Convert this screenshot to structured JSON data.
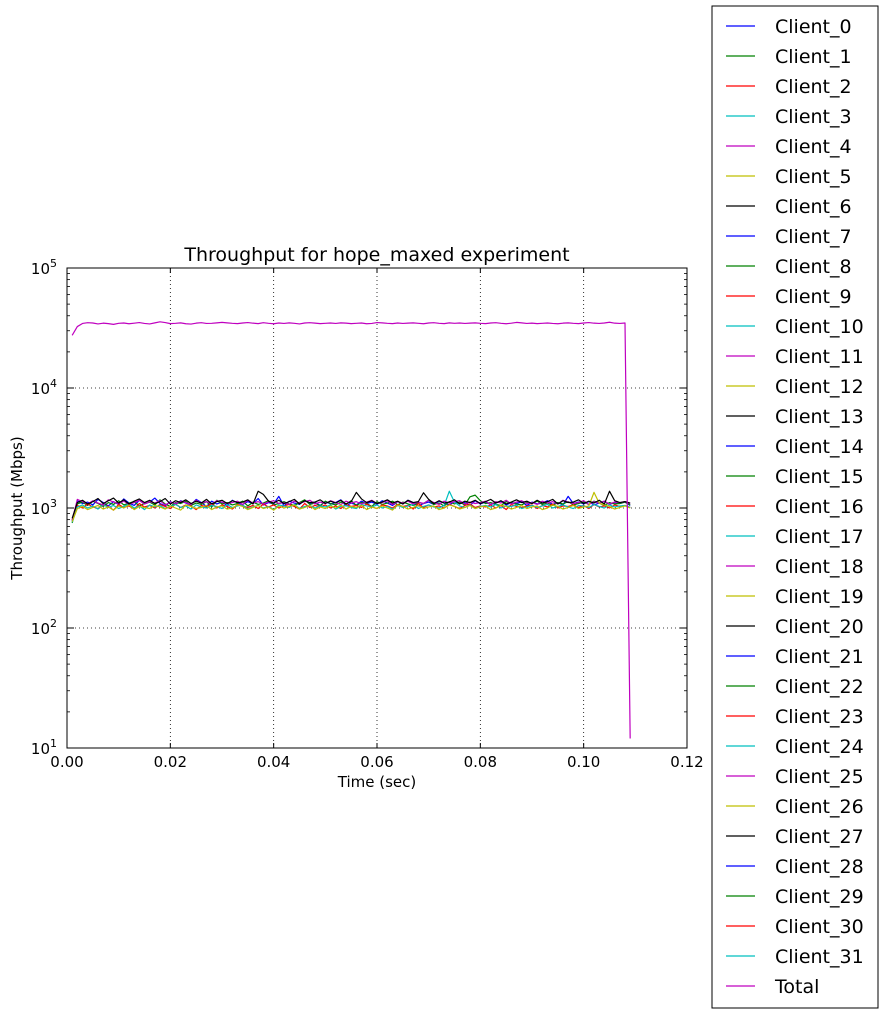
{
  "chart_data": {
    "type": "line",
    "title": "Throughput for hope_maxed experiment",
    "xlabel": "Time (sec)",
    "ylabel": "Throughput (Mbps)",
    "xlim": [
      0.0,
      0.12
    ],
    "ylim": [
      10,
      100000
    ],
    "yscale": "log",
    "grid": true,
    "legend_placement": "outside-right",
    "x_ticks": [
      "0.00",
      "0.02",
      "0.04",
      "0.06",
      "0.08",
      "0.10",
      "0.12"
    ],
    "y_ticks": [
      {
        "base": "10",
        "exp": "1"
      },
      {
        "base": "10",
        "exp": "2"
      },
      {
        "base": "10",
        "exp": "3"
      },
      {
        "base": "10",
        "exp": "4"
      },
      {
        "base": "10",
        "exp": "5"
      }
    ],
    "colors": [
      "#0000ff",
      "#008000",
      "#ff0000",
      "#00bfbf",
      "#bf00bf",
      "#bfbf00",
      "#000000"
    ],
    "x": [
      0.001,
      0.002,
      0.003,
      0.004,
      0.005,
      0.006,
      0.007,
      0.008,
      0.009,
      0.01,
      0.011,
      0.012,
      0.013,
      0.014,
      0.015,
      0.016,
      0.017,
      0.018,
      0.019,
      0.02,
      0.021,
      0.022,
      0.023,
      0.024,
      0.025,
      0.026,
      0.027,
      0.028,
      0.029,
      0.03,
      0.031,
      0.032,
      0.033,
      0.034,
      0.035,
      0.036,
      0.037,
      0.038,
      0.039,
      0.04,
      0.041,
      0.042,
      0.043,
      0.044,
      0.045,
      0.046,
      0.047,
      0.048,
      0.049,
      0.05,
      0.051,
      0.052,
      0.053,
      0.054,
      0.055,
      0.056,
      0.057,
      0.058,
      0.059,
      0.06,
      0.061,
      0.062,
      0.063,
      0.064,
      0.065,
      0.066,
      0.067,
      0.068,
      0.069,
      0.07,
      0.071,
      0.072,
      0.073,
      0.074,
      0.075,
      0.076,
      0.077,
      0.078,
      0.079,
      0.08,
      0.081,
      0.082,
      0.083,
      0.084,
      0.085,
      0.086,
      0.087,
      0.088,
      0.089,
      0.09,
      0.091,
      0.092,
      0.093,
      0.094,
      0.095,
      0.096,
      0.097,
      0.098,
      0.099,
      0.1,
      0.101,
      0.102,
      0.103,
      0.104,
      0.105,
      0.106,
      0.107,
      0.108,
      0.109
    ],
    "series": [
      {
        "name": "Client_0",
        "values": [
          780,
          1150,
          1090,
          1120,
          1060,
          1180,
          1110,
          1040,
          1130,
          1070,
          1190,
          1100,
          1050,
          1160,
          1080,
          1120,
          1210,
          1090,
          1040,
          1130,
          1070,
          1150,
          1100,
          1060,
          1180,
          1110,
          1030,
          1140,
          1080,
          1120,
          1050,
          1160,
          1100,
          1070,
          1130,
          1090,
          1200,
          1060,
          1110,
          1080,
          1250,
          1040,
          1140,
          1100,
          1070,
          1160,
          1090,
          1120,
          1050,
          1130,
          1080,
          1110,
          1170,
          1040,
          1100,
          1060,
          1140,
          1090,
          1120,
          1070,
          1150,
          1100,
          1050,
          1130,
          1080,
          1160,
          1110,
          1040,
          1090,
          1120,
          1070,
          1140,
          1100,
          1060,
          1130,
          1090,
          1110,
          1050,
          1150,
          1080,
          1120,
          1070,
          1100,
          1140,
          1060,
          1110,
          1090,
          1130,
          1050,
          1120,
          1080,
          1100,
          1150,
          1070,
          1110,
          1060,
          1250,
          1090,
          1120,
          1080,
          1130,
          1060,
          1100,
          1140,
          1070,
          1110,
          1090,
          1120,
          1050
        ]
      },
      {
        "name": "Client_1",
        "values": [
          750,
          1080,
          1120,
          1050,
          1140,
          1090,
          1030,
          1110,
          1070,
          1150,
          1060,
          1100,
          1130,
          1040,
          1090,
          1120,
          1060,
          1170,
          1080,
          1030,
          1110,
          1090,
          1140,
          1050,
          1100,
          1070,
          1130,
          1020,
          1160,
          1080,
          1110,
          1060,
          1090,
          1140,
          1040,
          1120,
          1070,
          1100,
          1150,
          1060,
          1090,
          1130,
          1080,
          1050,
          1110,
          1170,
          1070,
          1100,
          1040,
          1140,
          1090,
          1060,
          1120,
          1080,
          1150,
          1050,
          1110,
          1090,
          1030,
          1130,
          1070,
          1100,
          1140,
          1060,
          1120,
          1080,
          1050,
          1110,
          1090,
          1160,
          1070,
          1100,
          1040,
          1130,
          1080,
          1120,
          1060,
          1240,
          1280,
          1150,
          1090,
          1110,
          1070,
          1050,
          1130,
          1100,
          1080,
          1060,
          1120,
          1090,
          1140,
          1070,
          1100,
          1050,
          1110,
          1080,
          1130,
          1060,
          1090,
          1120,
          1070,
          1140,
          1100,
          1050,
          1110,
          1080,
          1090,
          1120,
          1060
        ]
      },
      {
        "name": "Client_2",
        "values": [
          800,
          1050,
          1000,
          1080,
          1020,
          990,
          1060,
          1030,
          960,
          1070,
          1010,
          1040,
          980,
          1090,
          1020,
          1050,
          1000,
          1070,
          1030,
          990,
          1080,
          1010,
          1060,
          1040,
          970,
          1050,
          1020,
          1090,
          1000,
          1060,
          1030,
          980,
          1070,
          1040,
          1010,
          1050,
          990,
          1080,
          1020,
          1060,
          1000,
          1040,
          1070,
          1030,
          980,
          1090,
          1010,
          1050,
          1020,
          1060,
          1000,
          1040,
          990,
          1070,
          1030,
          1050,
          1010,
          1080,
          1020,
          990,
          1060,
          1040,
          1000,
          1070,
          1030,
          1050,
          980,
          1090,
          1010,
          1060,
          1020,
          1040,
          1000,
          1070,
          1030,
          990,
          1050,
          1080,
          1010,
          1040,
          1020,
          1060,
          1000,
          1050,
          970,
          1070,
          1030,
          1010,
          1040,
          1060,
          990,
          1050,
          1020,
          1080,
          1000,
          1040,
          1030,
          1060,
          1010,
          1050,
          990,
          1070,
          1020,
          1040,
          1000,
          1060,
          1030,
          1050,
          1010
        ]
      },
      {
        "name": "Client_3",
        "values": [
          760,
          1020,
          1060,
          1000,
          1040,
          980,
          1070,
          1010,
          1050,
          990,
          1030,
          1080,
          1000,
          1040,
          970,
          1060,
          1020,
          1050,
          990,
          1030,
          1070,
          1010,
          1040,
          980,
          1060,
          1020,
          1000,
          1050,
          1030,
          990,
          1070,
          1010,
          1040,
          1060,
          980,
          1020,
          1050,
          1000,
          1030,
          970,
          1060,
          1040,
          1010,
          1070,
          990,
          1030,
          1050,
          1000,
          1040,
          1020,
          1060,
          980,
          1030,
          1050,
          1010,
          990,
          1070,
          1040,
          1020,
          1060,
          1000,
          1030,
          980,
          1050,
          1010,
          1040,
          1070,
          990,
          1030,
          1060,
          1020,
          1000,
          1050,
          1380,
          1120,
          1040,
          1010,
          1060,
          990,
          1030,
          1050,
          1020,
          1070,
          1000,
          1040,
          1030,
          1060,
          990,
          1020,
          1050,
          1010,
          1040,
          1070,
          1000,
          1030,
          1060,
          1020,
          990,
          1050,
          1040,
          1010,
          1070,
          1030,
          1000,
          1060,
          1020,
          1040,
          1050,
          1010
        ]
      },
      {
        "name": "Client_4",
        "values": [
          790,
          1180,
          1130,
          1080,
          1150,
          1100,
          1060,
          1170,
          1120,
          1090,
          1140,
          1070,
          1110,
          1160,
          1080,
          1130,
          1100,
          1150,
          1060,
          1120,
          1090,
          1140,
          1110,
          1070,
          1160,
          1100,
          1130,
          1080,
          1150,
          1120,
          1090,
          1110,
          1140,
          1070,
          1160,
          1100,
          1130,
          1080,
          1120,
          1150,
          1090,
          1110,
          1070,
          1140,
          1100,
          1130,
          1160,
          1080,
          1120,
          1090,
          1150,
          1110,
          1070,
          1140,
          1100,
          1130,
          1080,
          1120,
          1160,
          1090,
          1110,
          1150,
          1070,
          1130,
          1100,
          1140,
          1080,
          1120,
          1090,
          1160,
          1110,
          1070,
          1140,
          1100,
          1130,
          1150,
          1080,
          1120,
          1090,
          1110,
          1140,
          1070,
          1130,
          1100,
          1160,
          1080,
          1120,
          1150,
          1090,
          1110,
          1070,
          1140,
          1100,
          1130,
          1080,
          1160,
          1120,
          1090,
          1110,
          1150,
          1070,
          1130,
          1100,
          1140,
          1080,
          1120,
          1110,
          1130,
          1090
        ]
      },
      {
        "name": "Client_5",
        "values": [
          770,
          990,
          1030,
          970,
          1010,
          1050,
          980,
          1020,
          960,
          1040,
          1000,
          1060,
          970,
          1030,
          1010,
          990,
          1050,
          1020,
          980,
          1040,
          1000,
          960,
          1060,
          1030,
          990,
          1010,
          1050,
          970,
          1020,
          1040,
          980,
          1000,
          1060,
          1030,
          970,
          1010,
          1050,
          990,
          1020,
          960,
          1040,
          1000,
          1030,
          1060,
          980,
          1010,
          1050,
          970,
          1020,
          990,
          1040,
          1000,
          1060,
          980,
          1030,
          1010,
          1050,
          970,
          1020,
          990,
          1040,
          1000,
          960,
          1060,
          1030,
          980,
          1010,
          1050,
          990,
          1020,
          1040,
          970,
          1000,
          1060,
          1030,
          980,
          1010,
          1050,
          990,
          1020,
          1040,
          970,
          1000,
          1060,
          1030,
          980,
          1010,
          1050,
          990,
          1020,
          1040,
          970,
          1000,
          1060,
          1030,
          980,
          1010,
          1050,
          990,
          1020,
          1040,
          1350,
          1100,
          1060,
          1030,
          980,
          1010,
          1040,
          1000
        ]
      },
      {
        "name": "Client_6",
        "values": [
          820,
          1110,
          1160,
          1080,
          1130,
          1200,
          1090,
          1150,
          1210,
          1100,
          1170,
          1080,
          1140,
          1190,
          1110,
          1160,
          1090,
          1130,
          1200,
          1080,
          1150,
          1110,
          1170,
          1090,
          1140,
          1100,
          1180,
          1080,
          1130,
          1160,
          1090,
          1150,
          1110,
          1120,
          1170,
          1080,
          1380,
          1300,
          1140,
          1100,
          1160,
          1090,
          1130,
          1180,
          1080,
          1150,
          1110,
          1120,
          1170,
          1090,
          1140,
          1100,
          1160,
          1080,
          1130,
          1350,
          1190,
          1110,
          1150,
          1090,
          1120,
          1170,
          1100,
          1140,
          1080,
          1160,
          1110,
          1130,
          1340,
          1180,
          1090,
          1150,
          1100,
          1120,
          1170,
          1080,
          1140,
          1110,
          1160,
          1090,
          1130,
          1180,
          1100,
          1150,
          1080,
          1120,
          1170,
          1110,
          1140,
          1090,
          1160,
          1100,
          1130,
          1180,
          1080,
          1150,
          1110,
          1120,
          1170,
          1090,
          1140,
          1100,
          1160,
          1080,
          1380,
          1150,
          1110,
          1130,
          1100
        ]
      },
      {
        "name": "Total",
        "values": [
          27500,
          32500,
          34500,
          35000,
          34800,
          34200,
          34700,
          34400,
          33900,
          34600,
          34800,
          34300,
          34700,
          35100,
          34500,
          34200,
          34900,
          35600,
          35100,
          34400,
          34600,
          34900,
          34300,
          34100,
          34700,
          35000,
          34500,
          34600,
          34900,
          35200,
          34900,
          34600,
          34400,
          34800,
          35100,
          34700,
          34400,
          35000,
          34600,
          34300,
          34800,
          34500,
          34900,
          34600,
          34200,
          34800,
          35000,
          34700,
          34400,
          34600,
          34800,
          34500,
          34900,
          34700,
          34400,
          34600,
          34800,
          34300,
          34500,
          35100,
          34900,
          34600,
          34400,
          34800,
          34500,
          34700,
          34900,
          34600,
          34300,
          34800,
          35000,
          34600,
          34400,
          34900,
          34600,
          34800,
          34500,
          34700,
          34900,
          34600,
          34400,
          34800,
          35000,
          34600,
          34300,
          34700,
          35200,
          34900,
          34500,
          34700,
          34400,
          34600,
          34800,
          34500,
          34300,
          34700,
          34900,
          34600,
          34400,
          34800,
          35100,
          34700,
          34500,
          34800,
          35300,
          34700,
          34500,
          34800,
          12
        ]
      }
    ],
    "legend": [
      "Client_0",
      "Client_1",
      "Client_2",
      "Client_3",
      "Client_4",
      "Client_5",
      "Client_6",
      "Client_7",
      "Client_8",
      "Client_9",
      "Client_10",
      "Client_11",
      "Client_12",
      "Client_13",
      "Client_14",
      "Client_15",
      "Client_16",
      "Client_17",
      "Client_18",
      "Client_19",
      "Client_20",
      "Client_21",
      "Client_22",
      "Client_23",
      "Client_24",
      "Client_25",
      "Client_26",
      "Client_27",
      "Client_28",
      "Client_29",
      "Client_30",
      "Client_31",
      "Total"
    ]
  }
}
